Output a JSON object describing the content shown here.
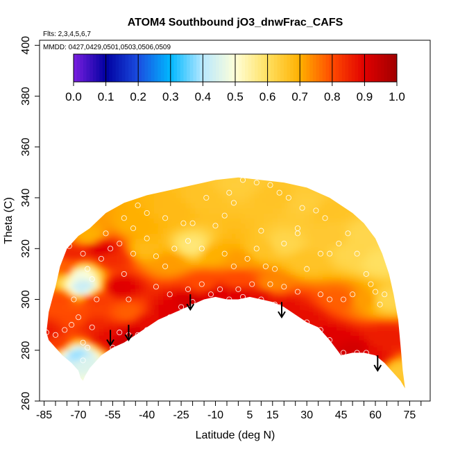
{
  "chart_data": {
    "type": "heatmap",
    "title": "ATOM4 Southbound jO3_dnwFrac_CAFS",
    "annotations": {
      "flights": "Flts: 2,3,4,5,6,7",
      "dates": "MMDD: 0427,0429,0501,0503,0506,0509"
    },
    "xlabel": "Latitude (deg N)",
    "ylabel": "Theta (C)",
    "xlim": [
      -87,
      84
    ],
    "ylim": [
      260,
      402
    ],
    "x_ticks": [
      -85,
      -70,
      -55,
      -40,
      -25,
      -10,
      5,
      15,
      30,
      45,
      60,
      75
    ],
    "y_ticks": [
      260,
      280,
      300,
      320,
      340,
      360,
      380,
      400
    ],
    "colorbar": {
      "ticks": [
        "0.0",
        "0.1",
        "0.2",
        "0.3",
        "0.4",
        "0.5",
        "0.6",
        "0.7",
        "0.8",
        "0.9",
        "1.0"
      ],
      "range": [
        0,
        1
      ],
      "colors": [
        "#7a1fe0",
        "#0000a0",
        "#1a4de0",
        "#00b8ff",
        "#b8e8ff",
        "#ffffd8",
        "#ffe060",
        "#ffb000",
        "#ff4a00",
        "#e00000",
        "#a00000"
      ]
    },
    "top_boundary": [
      [
        -84,
        287
      ],
      [
        -83,
        295
      ],
      [
        -80,
        305
      ],
      [
        -78,
        313
      ],
      [
        -75,
        320
      ],
      [
        -70,
        325
      ],
      [
        -65,
        328
      ],
      [
        -58,
        334
      ],
      [
        -50,
        338
      ],
      [
        -40,
        341
      ],
      [
        -30,
        343
      ],
      [
        -20,
        345
      ],
      [
        -15,
        346
      ],
      [
        -10,
        347
      ],
      [
        0,
        348
      ],
      [
        10,
        347
      ],
      [
        20,
        346
      ],
      [
        30,
        344
      ],
      [
        35,
        342
      ],
      [
        40,
        340
      ],
      [
        45,
        337
      ],
      [
        50,
        334
      ],
      [
        55,
        330
      ],
      [
        60,
        324
      ],
      [
        63,
        318
      ],
      [
        66,
        310
      ],
      [
        68,
        302
      ],
      [
        70,
        292
      ],
      [
        71,
        282
      ],
      [
        72,
        272
      ],
      [
        73,
        265
      ]
    ],
    "bottom_boundary": [
      [
        73,
        265
      ],
      [
        71,
        268
      ],
      [
        69,
        270
      ],
      [
        67,
        272
      ],
      [
        64,
        275
      ],
      [
        60,
        278
      ],
      [
        55,
        279
      ],
      [
        50,
        279
      ],
      [
        45,
        278
      ],
      [
        40,
        284
      ],
      [
        35,
        289
      ],
      [
        30,
        291
      ],
      [
        25,
        294
      ],
      [
        20,
        297
      ],
      [
        15,
        299
      ],
      [
        10,
        300
      ],
      [
        5,
        301
      ],
      [
        0,
        300
      ],
      [
        -5,
        300
      ],
      [
        -10,
        301
      ],
      [
        -15,
        300
      ],
      [
        -20,
        298
      ],
      [
        -25,
        296
      ],
      [
        -30,
        294
      ],
      [
        -35,
        292
      ],
      [
        -40,
        289
      ],
      [
        -45,
        286
      ],
      [
        -50,
        283
      ],
      [
        -55,
        281
      ],
      [
        -60,
        278
      ],
      [
        -63,
        275
      ],
      [
        -65,
        273
      ],
      [
        -67,
        270
      ],
      [
        -68,
        268
      ],
      [
        -69,
        269
      ],
      [
        -70,
        272
      ],
      [
        -73,
        275
      ],
      [
        -77,
        278
      ],
      [
        -80,
        281
      ],
      [
        -83,
        284
      ],
      [
        -84,
        287
      ]
    ],
    "value_field": [
      {
        "lat": -84,
        "theta": 287,
        "value": 0.86
      },
      {
        "lat": -80,
        "theta": 283,
        "value": 0.82
      },
      {
        "lat": -78,
        "theta": 300,
        "value": 0.8
      },
      {
        "lat": -75,
        "theta": 312,
        "value": 0.78
      },
      {
        "lat": -72,
        "theta": 318,
        "value": 0.85
      },
      {
        "lat": -70,
        "theta": 310,
        "value": 0.48
      },
      {
        "lat": -68,
        "theta": 305,
        "value": 0.42
      },
      {
        "lat": -70,
        "theta": 278,
        "value": 0.38
      },
      {
        "lat": -68,
        "theta": 276,
        "value": 0.45
      },
      {
        "lat": -70,
        "theta": 292,
        "value": 0.8
      },
      {
        "lat": -65,
        "theta": 290,
        "value": 0.85
      },
      {
        "lat": -62,
        "theta": 300,
        "value": 0.82
      },
      {
        "lat": -60,
        "theta": 320,
        "value": 0.9
      },
      {
        "lat": -65,
        "theta": 325,
        "value": 0.7
      },
      {
        "lat": -55,
        "theta": 316,
        "value": 0.84
      },
      {
        "lat": -52,
        "theta": 305,
        "value": 0.9
      },
      {
        "lat": -48,
        "theta": 295,
        "value": 0.78
      },
      {
        "lat": -58,
        "theta": 285,
        "value": 0.88
      },
      {
        "lat": -52,
        "theta": 283,
        "value": 0.93
      },
      {
        "lat": -45,
        "theta": 286,
        "value": 0.92
      },
      {
        "lat": -40,
        "theta": 291,
        "value": 0.88
      },
      {
        "lat": -30,
        "theta": 295,
        "value": 0.9
      },
      {
        "lat": -20,
        "theta": 299,
        "value": 0.92
      },
      {
        "lat": -10,
        "theta": 302,
        "value": 0.9
      },
      {
        "lat": 0,
        "theta": 301,
        "value": 0.9
      },
      {
        "lat": 10,
        "theta": 301,
        "value": 0.88
      },
      {
        "lat": 20,
        "theta": 297,
        "value": 0.88
      },
      {
        "lat": 30,
        "theta": 292,
        "value": 0.88
      },
      {
        "lat": 40,
        "theta": 285,
        "value": 0.9
      },
      {
        "lat": 50,
        "theta": 280,
        "value": 0.92
      },
      {
        "lat": 60,
        "theta": 277,
        "value": 0.88
      },
      {
        "lat": 65,
        "theta": 285,
        "value": 0.86
      },
      {
        "lat": 70,
        "theta": 272,
        "value": 0.65
      },
      {
        "lat": 65,
        "theta": 300,
        "value": 0.62
      },
      {
        "lat": 55,
        "theta": 300,
        "value": 0.72
      },
      {
        "lat": 45,
        "theta": 300,
        "value": 0.78
      },
      {
        "lat": 50,
        "theta": 318,
        "value": 0.62
      },
      {
        "lat": 40,
        "theta": 325,
        "value": 0.65
      },
      {
        "lat": 30,
        "theta": 315,
        "value": 0.66
      },
      {
        "lat": 20,
        "theta": 322,
        "value": 0.62
      },
      {
        "lat": 10,
        "theta": 320,
        "value": 0.66
      },
      {
        "lat": 0,
        "theta": 316,
        "value": 0.72
      },
      {
        "lat": -10,
        "theta": 318,
        "value": 0.7
      },
      {
        "lat": -20,
        "theta": 321,
        "value": 0.58
      },
      {
        "lat": -30,
        "theta": 315,
        "value": 0.72
      },
      {
        "lat": -40,
        "theta": 320,
        "value": 0.68
      },
      {
        "lat": -45,
        "theta": 330,
        "value": 0.7
      },
      {
        "lat": -30,
        "theta": 335,
        "value": 0.68
      },
      {
        "lat": -15,
        "theta": 340,
        "value": 0.66
      },
      {
        "lat": 0,
        "theta": 345,
        "value": 0.64
      },
      {
        "lat": 15,
        "theta": 340,
        "value": 0.66
      },
      {
        "lat": 30,
        "theta": 338,
        "value": 0.64
      },
      {
        "lat": 40,
        "theta": 335,
        "value": 0.66
      },
      {
        "lat": 55,
        "theta": 325,
        "value": 0.62
      },
      {
        "lat": 62,
        "theta": 315,
        "value": 0.6
      },
      {
        "lat": 0,
        "theta": 308,
        "value": 0.8
      },
      {
        "lat": 15,
        "theta": 306,
        "value": 0.74
      },
      {
        "lat": -15,
        "theta": 306,
        "value": 0.8
      }
    ],
    "observations": [
      [
        -84,
        287
      ],
      [
        -80,
        286
      ],
      [
        -76,
        288
      ],
      [
        -73,
        290
      ],
      [
        -70,
        293
      ],
      [
        -68,
        283
      ],
      [
        -66,
        281
      ],
      [
        -68,
        276
      ],
      [
        -64,
        289
      ],
      [
        -62,
        300
      ],
      [
        -64,
        308
      ],
      [
        -66,
        312
      ],
      [
        -68,
        318
      ],
      [
        -74,
        321
      ],
      [
        -72,
        300
      ],
      [
        -60,
        316
      ],
      [
        -56,
        320
      ],
      [
        -58,
        326
      ],
      [
        -52,
        322
      ],
      [
        -50,
        310
      ],
      [
        -48,
        300
      ],
      [
        -46,
        318
      ],
      [
        -46,
        328
      ],
      [
        -50,
        332
      ],
      [
        -55,
        281
      ],
      [
        -52,
        287
      ],
      [
        -48,
        286
      ],
      [
        -44,
        286
      ],
      [
        -40,
        288
      ],
      [
        -36,
        288
      ],
      [
        -32,
        290
      ],
      [
        -30,
        293
      ],
      [
        -25,
        297
      ],
      [
        -20,
        299
      ],
      [
        -12,
        302
      ],
      [
        -4,
        300
      ],
      [
        2,
        301
      ],
      [
        10,
        300
      ],
      [
        16,
        298
      ],
      [
        18,
        297
      ],
      [
        24,
        293
      ],
      [
        30,
        291
      ],
      [
        36,
        288
      ],
      [
        40,
        284
      ],
      [
        46,
        279
      ],
      [
        52,
        279
      ],
      [
        56,
        279
      ],
      [
        -40,
        324
      ],
      [
        -36,
        317
      ],
      [
        -32,
        313
      ],
      [
        -28,
        320
      ],
      [
        -24,
        330
      ],
      [
        -20,
        330
      ],
      [
        -22,
        323
      ],
      [
        -16,
        320
      ],
      [
        -10,
        329
      ],
      [
        -6,
        318
      ],
      [
        -2,
        313
      ],
      [
        4,
        316
      ],
      [
        8,
        320
      ],
      [
        12,
        313
      ],
      [
        16,
        312
      ],
      [
        20,
        322
      ],
      [
        26,
        326
      ],
      [
        30,
        312
      ],
      [
        36,
        318
      ],
      [
        40,
        318
      ],
      [
        44,
        322
      ],
      [
        48,
        326
      ],
      [
        52,
        318
      ],
      [
        56,
        310
      ],
      [
        60,
        303
      ],
      [
        64,
        302
      ],
      [
        -36,
        305
      ],
      [
        -30,
        302
      ],
      [
        -22,
        304
      ],
      [
        -16,
        306
      ],
      [
        -8,
        304
      ],
      [
        0,
        304
      ],
      [
        6,
        306
      ],
      [
        14,
        306
      ],
      [
        20,
        305
      ],
      [
        26,
        303
      ],
      [
        36,
        302
      ],
      [
        40,
        300
      ],
      [
        46,
        300
      ],
      [
        50,
        302
      ],
      [
        58,
        306
      ],
      [
        62,
        298
      ],
      [
        -32,
        332
      ],
      [
        -40,
        334
      ],
      [
        -44,
        337
      ],
      [
        -14,
        340
      ],
      [
        -4,
        342
      ],
      [
        2,
        347
      ],
      [
        8,
        346
      ],
      [
        14,
        345
      ],
      [
        18,
        342
      ],
      [
        22,
        340
      ],
      [
        28,
        336
      ],
      [
        34,
        335
      ],
      [
        38,
        332
      ],
      [
        26,
        328
      ],
      [
        10,
        327
      ],
      [
        -6,
        333
      ],
      [
        -2,
        338
      ]
    ],
    "arrows": [
      [
        -56,
        282
      ],
      [
        -48,
        284
      ],
      [
        -21,
        296
      ],
      [
        19,
        293
      ],
      [
        61,
        272
      ]
    ]
  }
}
